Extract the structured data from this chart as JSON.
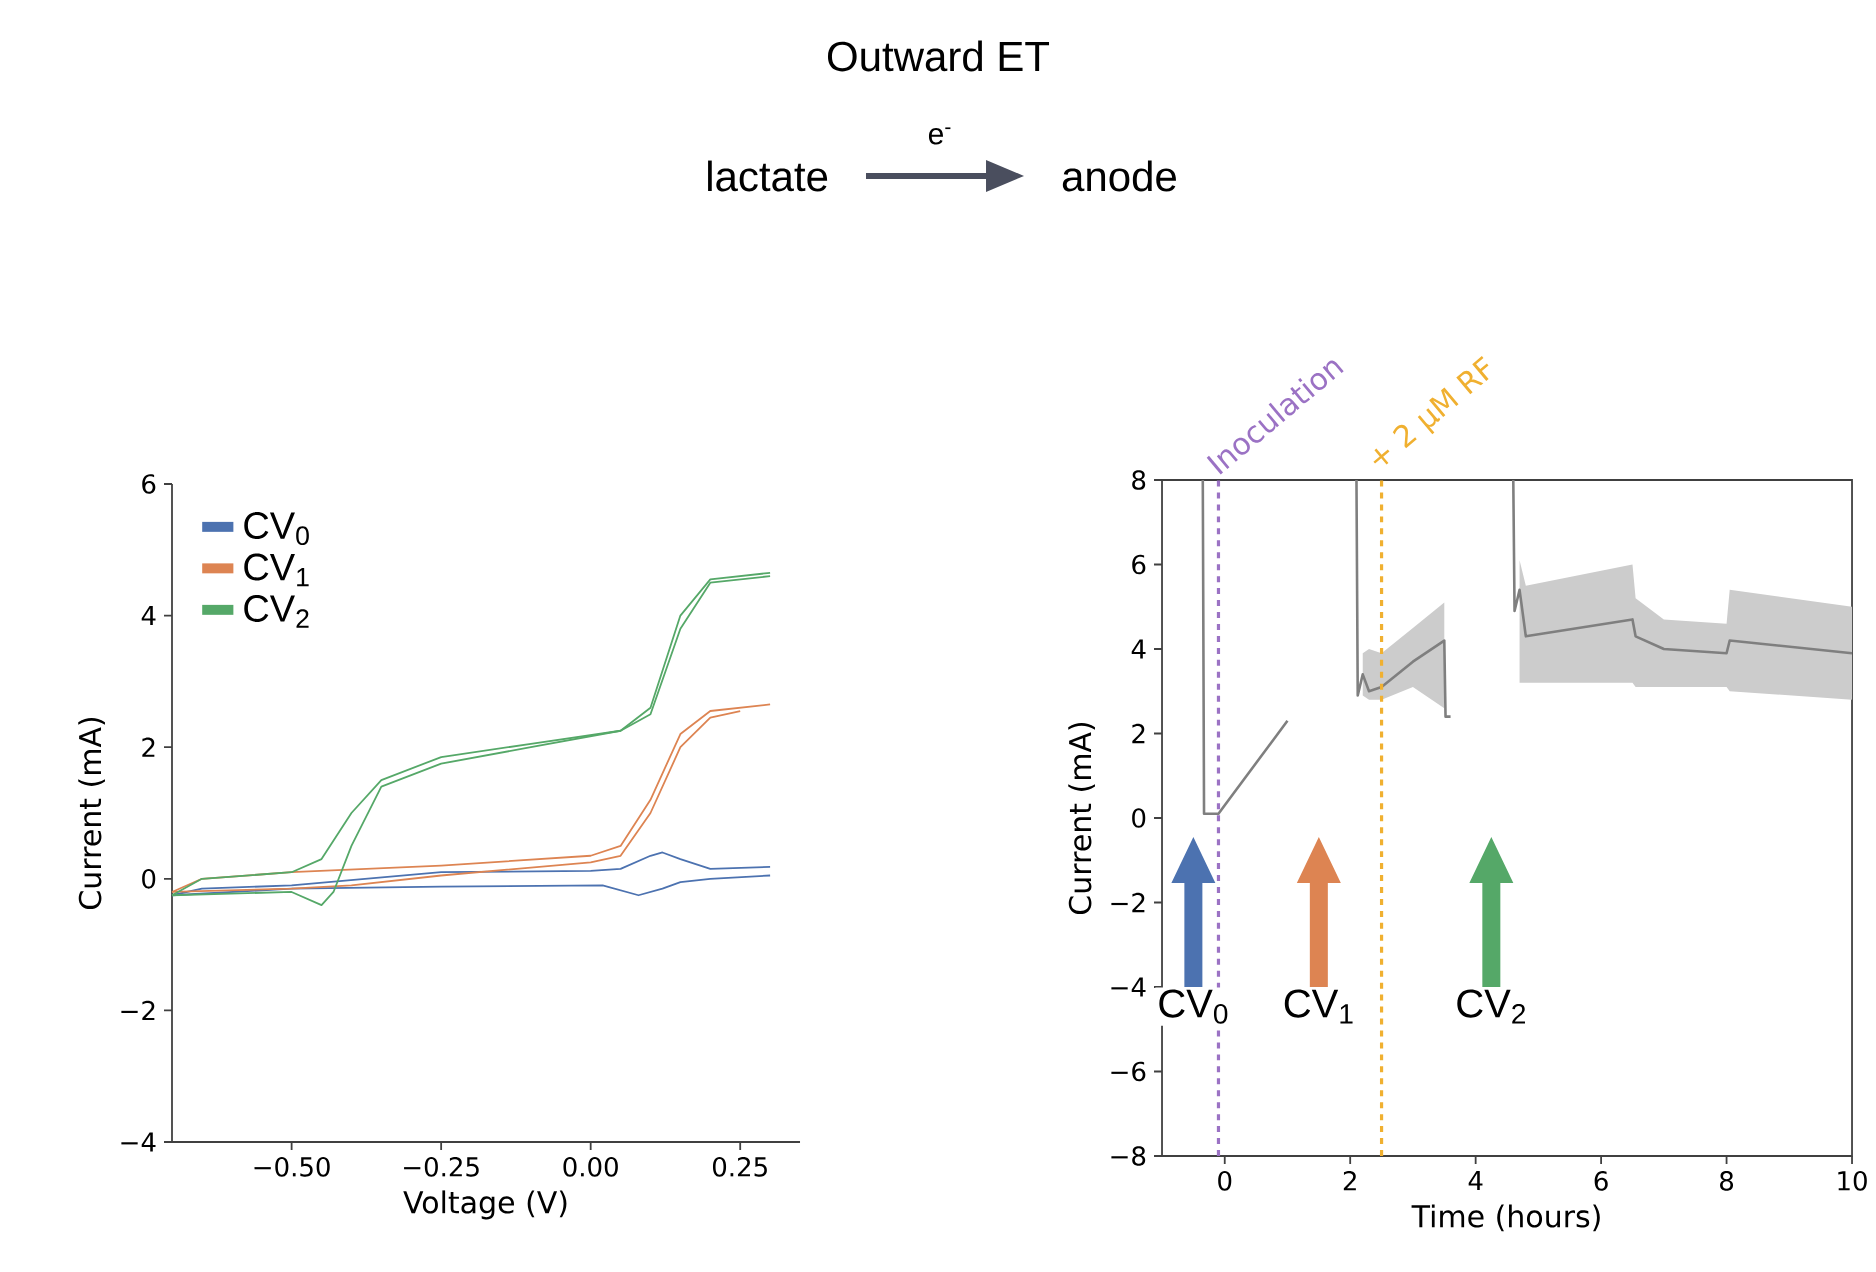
{
  "chart_data": [
    {
      "type": "other",
      "title": "Outward ET",
      "annotations": [
        "lactate",
        "e$^{-}$",
        "anode"
      ]
    },
    {
      "type": "line",
      "xlabel": "Voltage (V)",
      "ylabel": "Current (mA)",
      "xlim": [
        -0.7,
        0.35
      ],
      "ylim": [
        -4,
        6
      ],
      "xticks": [
        {
          "value": -0.5,
          "label": "−0.50"
        },
        {
          "value": -0.25,
          "label": "−0.25"
        },
        {
          "value": 0,
          "label": "0.00"
        },
        {
          "value": 0.25,
          "label": "0.25"
        }
      ],
      "yticks": [
        {
          "value": -4,
          "label": "−4"
        },
        {
          "value": -2,
          "label": "−2"
        },
        0,
        2,
        4,
        6
      ],
      "legend": "top left",
      "marker": "none",
      "line_style": "solid",
      "series": [
        {
          "name": "CV$_{0}$",
          "color": "#4c72b0",
          "x": [
            -0.7,
            -0.65,
            -0.5,
            -0.25,
            0.0,
            0.05,
            0.1,
            0.12,
            0.15,
            0.2,
            0.3
          ],
          "values": [
            -0.25,
            -0.15,
            -0.1,
            0.1,
            0.12,
            0.15,
            0.35,
            0.4,
            0.3,
            0.15,
            0.18
          ]
        },
        {
          "color": "#4c72b0",
          "x": [
            -0.7,
            -0.5,
            -0.25,
            0.02,
            0.08,
            0.12,
            0.15,
            0.2,
            0.3
          ],
          "values": [
            -0.25,
            -0.15,
            -0.12,
            -0.1,
            -0.25,
            -0.15,
            -0.05,
            0.0,
            0.05
          ]
        },
        {
          "name": "CV$_{1}$",
          "color": "#dd8452",
          "x": [
            -0.7,
            -0.65,
            -0.5,
            -0.25,
            0,
            0.05,
            0.1,
            0.15,
            0.2,
            0.3
          ],
          "values": [
            -0.2,
            0,
            0.1,
            0.2,
            0.35,
            0.5,
            1.2,
            2.2,
            2.55,
            2.65
          ]
        },
        {
          "color": "#dd8452",
          "x": [
            -0.7,
            -0.5,
            -0.4,
            -0.25,
            0,
            0.05,
            0.1,
            0.15,
            0.2,
            0.25
          ],
          "values": [
            -0.2,
            -0.15,
            -0.1,
            0.05,
            0.25,
            0.35,
            1.0,
            2.0,
            2.45,
            2.55
          ]
        },
        {
          "name": "CV$_{2}$",
          "color": "#55a868",
          "x": [
            -0.7,
            -0.65,
            -0.5,
            -0.45,
            -0.4,
            -0.35,
            -0.25,
            -0.1,
            0.05,
            0.1,
            0.15,
            0.2,
            0.3
          ],
          "values": [
            -0.25,
            0,
            0.1,
            0.3,
            1.0,
            1.5,
            1.85,
            2.05,
            2.25,
            2.6,
            4.0,
            4.55,
            4.65
          ]
        },
        {
          "color": "#55a868",
          "x": [
            -0.7,
            -0.5,
            -0.45,
            -0.43,
            -0.4,
            -0.35,
            -0.25,
            -0.1,
            0.05,
            0.1,
            0.15,
            0.2,
            0.3
          ],
          "values": [
            -0.25,
            -0.2,
            -0.4,
            -0.2,
            0.5,
            1.4,
            1.75,
            2.0,
            2.25,
            2.5,
            3.8,
            4.5,
            4.6
          ]
        }
      ]
    },
    {
      "type": "line",
      "xlabel": "Time (hours)",
      "ylabel": "Current (mA)",
      "xlim": [
        -1,
        10
      ],
      "ylim": [
        -8,
        8
      ],
      "xticks": [
        0,
        2,
        4,
        6,
        8,
        10
      ],
      "yticks": [
        {
          "value": -8,
          "label": "−8"
        },
        {
          "value": -6,
          "label": "−6"
        },
        {
          "value": -4,
          "label": "−4"
        },
        {
          "value": -2,
          "label": "−2"
        },
        0,
        2,
        4,
        6,
        8
      ],
      "marker": "none",
      "line_style": "solid",
      "ref_lines": [
        {
          "axis": "x",
          "value": -0.1,
          "label": "Inoculation",
          "color": "#9b72c4",
          "line_style": "dashed"
        },
        {
          "axis": "x",
          "value": 2.5,
          "label": "+ 2 µM RF",
          "color": "#f0b030",
          "line_style": "dashed"
        }
      ],
      "annotations": [
        "CV$_{0}$",
        "CV$_{1}$",
        "CV$_{2}$"
      ],
      "series": [
        {
          "color": "#7f7f7f",
          "x": [
            -0.35,
            -0.33,
            -0.1,
            0,
            0.5,
            1.0,
            null,
            2.1,
            2.12,
            2.2,
            2.3,
            2.5,
            3.0,
            3.5,
            3.52,
            3.6,
            null,
            4.6,
            4.62,
            4.7,
            4.8,
            6.5,
            6.55,
            7,
            8,
            8.05,
            10
          ],
          "values": [
            8,
            0.1,
            0.1,
            0.3,
            1.3,
            2.3,
            null,
            8,
            2.9,
            3.4,
            3.0,
            3.1,
            3.7,
            4.2,
            2.4,
            2.4,
            null,
            8,
            4.9,
            5.4,
            4.3,
            4.7,
            4.3,
            4.0,
            3.9,
            4.2,
            3.9
          ],
          "lower": [
            null,
            null,
            null,
            null,
            null,
            null,
            null,
            null,
            null,
            2.9,
            2.8,
            2.8,
            3.1,
            2.6,
            null,
            null,
            null,
            null,
            null,
            3.2,
            3.2,
            3.2,
            3.1,
            3.1,
            3.1,
            3.0,
            2.8
          ],
          "upper": [
            null,
            null,
            null,
            null,
            null,
            null,
            null,
            null,
            null,
            3.9,
            4.0,
            3.9,
            4.5,
            5.1,
            null,
            null,
            null,
            null,
            null,
            6.1,
            5.5,
            6.0,
            5.2,
            4.7,
            4.6,
            5.4,
            5.0
          ]
        }
      ]
    }
  ]
}
